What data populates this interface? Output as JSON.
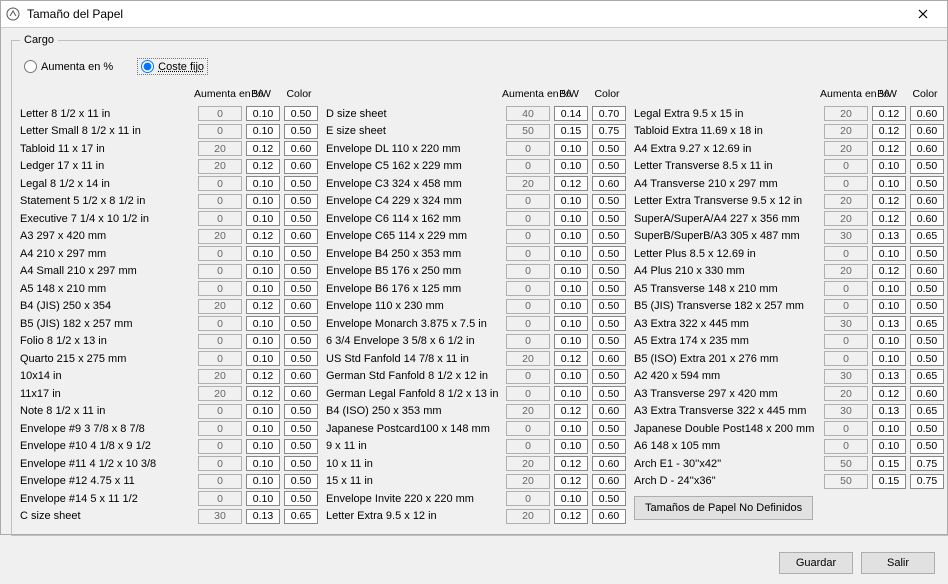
{
  "window": {
    "title": "Tamaño del Papel"
  },
  "group": {
    "legend": "Cargo"
  },
  "radios": {
    "opt_pct": "Aumenta en %",
    "opt_fixed": "Coste fijo",
    "selected": "fixed"
  },
  "headers": {
    "aumenta": "Aumenta en %",
    "bw": "B/W",
    "color": "Color"
  },
  "col1": [
    {
      "label": "Letter 8 1/2 x 11 in",
      "a": "0",
      "b": "0.10",
      "c": "0.50"
    },
    {
      "label": "Letter Small 8 1/2 x 11 in",
      "a": "0",
      "b": "0.10",
      "c": "0.50"
    },
    {
      "label": "Tabloid 11 x 17 in",
      "a": "20",
      "b": "0.12",
      "c": "0.60"
    },
    {
      "label": "Ledger 17 x 11 in",
      "a": "20",
      "b": "0.12",
      "c": "0.60"
    },
    {
      "label": "Legal 8 1/2 x 14 in",
      "a": "0",
      "b": "0.10",
      "c": "0.50"
    },
    {
      "label": "Statement 5 1/2 x 8 1/2 in",
      "a": "0",
      "b": "0.10",
      "c": "0.50"
    },
    {
      "label": "Executive 7 1/4 x 10 1/2 in",
      "a": "0",
      "b": "0.10",
      "c": "0.50"
    },
    {
      "label": "A3 297 x 420 mm",
      "a": "20",
      "b": "0.12",
      "c": "0.60"
    },
    {
      "label": "A4 210 x 297 mm",
      "a": "0",
      "b": "0.10",
      "c": "0.50"
    },
    {
      "label": "A4 Small 210 x 297 mm",
      "a": "0",
      "b": "0.10",
      "c": "0.50"
    },
    {
      "label": "A5 148 x 210 mm",
      "a": "0",
      "b": "0.10",
      "c": "0.50"
    },
    {
      "label": "B4 (JIS) 250 x 354",
      "a": "20",
      "b": "0.12",
      "c": "0.60"
    },
    {
      "label": "B5 (JIS) 182 x 257 mm",
      "a": "0",
      "b": "0.10",
      "c": "0.50"
    },
    {
      "label": "Folio 8 1/2 x 13 in",
      "a": "0",
      "b": "0.10",
      "c": "0.50"
    },
    {
      "label": "Quarto 215 x 275 mm",
      "a": "0",
      "b": "0.10",
      "c": "0.50"
    },
    {
      "label": "10x14 in",
      "a": "20",
      "b": "0.12",
      "c": "0.60"
    },
    {
      "label": "11x17 in",
      "a": "20",
      "b": "0.12",
      "c": "0.60"
    },
    {
      "label": "Note 8 1/2 x 11 in",
      "a": "0",
      "b": "0.10",
      "c": "0.50"
    },
    {
      "label": "Envelope #9 3 7/8 x 8 7/8",
      "a": "0",
      "b": "0.10",
      "c": "0.50"
    },
    {
      "label": "Envelope #10 4 1/8 x 9 1/2",
      "a": "0",
      "b": "0.10",
      "c": "0.50"
    },
    {
      "label": "Envelope #11 4 1/2 x 10 3/8",
      "a": "0",
      "b": "0.10",
      "c": "0.50"
    },
    {
      "label": "Envelope #12 4.75 x 11",
      "a": "0",
      "b": "0.10",
      "c": "0.50"
    },
    {
      "label": "Envelope #14 5 x 11 1/2",
      "a": "0",
      "b": "0.10",
      "c": "0.50"
    },
    {
      "label": "C size sheet",
      "a": "30",
      "b": "0.13",
      "c": "0.65"
    }
  ],
  "col2": [
    {
      "label": "D size sheet",
      "a": "40",
      "b": "0.14",
      "c": "0.70"
    },
    {
      "label": "E size sheet",
      "a": "50",
      "b": "0.15",
      "c": "0.75"
    },
    {
      "label": "Envelope DL 110 x 220 mm",
      "a": "0",
      "b": "0.10",
      "c": "0.50"
    },
    {
      "label": "Envelope C5 162 x 229 mm",
      "a": "0",
      "b": "0.10",
      "c": "0.50"
    },
    {
      "label": "Envelope C3  324 x 458 mm",
      "a": "20",
      "b": "0.12",
      "c": "0.60"
    },
    {
      "label": "Envelope C4  229 x 324 mm",
      "a": "0",
      "b": "0.10",
      "c": "0.50"
    },
    {
      "label": "Envelope C6  114 x 162 mm",
      "a": "0",
      "b": "0.10",
      "c": "0.50"
    },
    {
      "label": "Envelope C65 114 x 229 mm",
      "a": "0",
      "b": "0.10",
      "c": "0.50"
    },
    {
      "label": "Envelope B4  250 x 353 mm",
      "a": "0",
      "b": "0.10",
      "c": "0.50"
    },
    {
      "label": "Envelope B5  176 x 250 mm",
      "a": "0",
      "b": "0.10",
      "c": "0.50"
    },
    {
      "label": "Envelope B6  176 x 125 mm",
      "a": "0",
      "b": "0.10",
      "c": "0.50"
    },
    {
      "label": "Envelope 110 x 230 mm",
      "a": "0",
      "b": "0.10",
      "c": "0.50"
    },
    {
      "label": "Envelope Monarch 3.875 x 7.5 in",
      "a": "0",
      "b": "0.10",
      "c": "0.50"
    },
    {
      "label": "6 3/4 Envelope 3 5/8 x 6 1/2 in",
      "a": "0",
      "b": "0.10",
      "c": "0.50"
    },
    {
      "label": "US Std Fanfold 14 7/8 x 11 in",
      "a": "20",
      "b": "0.12",
      "c": "0.60"
    },
    {
      "label": "German Std Fanfold 8 1/2 x 12 in",
      "a": "0",
      "b": "0.10",
      "c": "0.50"
    },
    {
      "label": "German Legal Fanfold 8 1/2 x 13 in",
      "a": "0",
      "b": "0.10",
      "c": "0.50"
    },
    {
      "label": "B4 (ISO) 250 x 353 mm",
      "a": "20",
      "b": "0.12",
      "c": "0.60"
    },
    {
      "label": "Japanese Postcard100 x 148 mm",
      "a": "0",
      "b": "0.10",
      "c": "0.50"
    },
    {
      "label": "9 x 11 in",
      "a": "0",
      "b": "0.10",
      "c": "0.50"
    },
    {
      "label": "10 x 11 in",
      "a": "20",
      "b": "0.12",
      "c": "0.60"
    },
    {
      "label": "15 x 11 in",
      "a": "20",
      "b": "0.12",
      "c": "0.60"
    },
    {
      "label": "Envelope Invite 220 x 220 mm",
      "a": "0",
      "b": "0.10",
      "c": "0.50"
    },
    {
      "label": "Letter Extra 9.5 x 12 in",
      "a": "20",
      "b": "0.12",
      "c": "0.60"
    }
  ],
  "col3": [
    {
      "label": "Legal Extra 9.5 x 15 in",
      "a": "20",
      "b": "0.12",
      "c": "0.60"
    },
    {
      "label": "Tabloid Extra 11.69 x 18 in",
      "a": "20",
      "b": "0.12",
      "c": "0.60"
    },
    {
      "label": "A4 Extra 9.27 x 12.69 in",
      "a": "20",
      "b": "0.12",
      "c": "0.60"
    },
    {
      "label": "Letter Transverse 8.5 x 11 in",
      "a": "0",
      "b": "0.10",
      "c": "0.50"
    },
    {
      "label": "A4 Transverse 210 x 297 mm",
      "a": "0",
      "b": "0.10",
      "c": "0.50"
    },
    {
      "label": "Letter Extra Transverse 9.5 x 12 in",
      "a": "20",
      "b": "0.12",
      "c": "0.60"
    },
    {
      "label": "SuperA/SuperA/A4 227 x 356 mm",
      "a": "20",
      "b": "0.12",
      "c": "0.60"
    },
    {
      "label": "SuperB/SuperB/A3 305 x 487 mm",
      "a": "30",
      "b": "0.13",
      "c": "0.65"
    },
    {
      "label": "Letter Plus 8.5 x 12.69 in",
      "a": "0",
      "b": "0.10",
      "c": "0.50"
    },
    {
      "label": "A4 Plus 210 x 330 mm",
      "a": "20",
      "b": "0.12",
      "c": "0.60"
    },
    {
      "label": "A5 Transverse 148 x 210 mm",
      "a": "0",
      "b": "0.10",
      "c": "0.50"
    },
    {
      "label": "B5 (JIS) Transverse 182 x 257 mm",
      "a": "0",
      "b": "0.10",
      "c": "0.50"
    },
    {
      "label": "A3 Extra 322 x 445 mm",
      "a": "30",
      "b": "0.13",
      "c": "0.65"
    },
    {
      "label": "A5 Extra 174 x 235 mm",
      "a": "0",
      "b": "0.10",
      "c": "0.50"
    },
    {
      "label": "B5 (ISO) Extra 201 x 276 mm",
      "a": "0",
      "b": "0.10",
      "c": "0.50"
    },
    {
      "label": "A2 420 x 594 mm",
      "a": "30",
      "b": "0.13",
      "c": "0.65"
    },
    {
      "label": "A3 Transverse 297 x 420 mm",
      "a": "20",
      "b": "0.12",
      "c": "0.60"
    },
    {
      "label": "A3 Extra Transverse 322 x 445 mm",
      "a": "30",
      "b": "0.13",
      "c": "0.65"
    },
    {
      "label": "Japanese Double Post148 x 200 mm",
      "a": "0",
      "b": "0.10",
      "c": "0.50"
    },
    {
      "label": "A6 148 x 105 mm",
      "a": "0",
      "b": "0.10",
      "c": "0.50"
    },
    {
      "label": "Arch E1 - 30''x42''",
      "a": "50",
      "b": "0.15",
      "c": "0.75"
    },
    {
      "label": "Arch D - 24''x36''",
      "a": "50",
      "b": "0.15",
      "c": "0.75"
    }
  ],
  "buttons": {
    "undefined": "Tamaños de Papel No Definidos",
    "save": "Guardar",
    "exit": "Salir"
  },
  "style": {
    "bg": "#f0f0f0",
    "border": "#bfbfbf",
    "disabled_bg": "#f0f0f0",
    "button_bg": "#e1e1e1"
  }
}
